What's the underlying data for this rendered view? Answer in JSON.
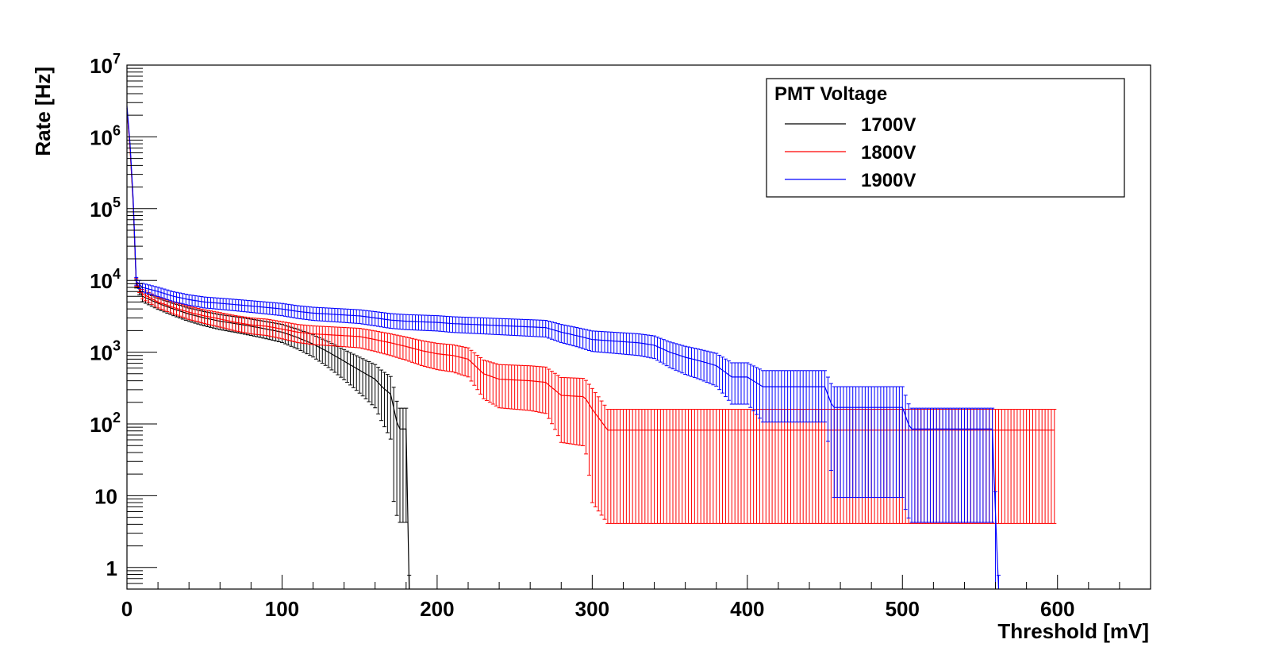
{
  "chart_data": {
    "type": "line",
    "xlabel": "Threshold [mV]",
    "ylabel": "Rate [Hz]",
    "xlim": [
      0,
      660
    ],
    "ylim": [
      0.5,
      10000000
    ],
    "y_scale": "log",
    "grid": false,
    "x_ticks": [
      0,
      100,
      200,
      300,
      400,
      500,
      600
    ],
    "x_tick_labels": [
      "0",
      "100",
      "200",
      "300",
      "400",
      "500",
      "600"
    ],
    "y_ticks": [
      1,
      10,
      100,
      1000,
      10000,
      100000,
      1000000,
      10000000
    ],
    "y_tick_labels": [
      {
        "base": "1",
        "exp": ""
      },
      {
        "base": "10",
        "exp": ""
      },
      {
        "base": "10",
        "exp": "2"
      },
      {
        "base": "10",
        "exp": "3"
      },
      {
        "base": "10",
        "exp": "4"
      },
      {
        "base": "10",
        "exp": "5"
      },
      {
        "base": "10",
        "exp": "6"
      },
      {
        "base": "10",
        "exp": "7"
      }
    ],
    "legend": {
      "title": "PMT Voltage",
      "position": "top-right"
    },
    "series": [
      {
        "name": "1700V",
        "color": "#000000",
        "points": [
          [
            0,
            2500000
          ],
          [
            2,
            700000
          ],
          [
            4,
            120000
          ],
          [
            6,
            9000
          ],
          [
            10,
            6000
          ],
          [
            20,
            4800
          ],
          [
            30,
            4000
          ],
          [
            40,
            3400
          ],
          [
            50,
            3000
          ],
          [
            60,
            2700
          ],
          [
            70,
            2500
          ],
          [
            80,
            2300
          ],
          [
            90,
            2100
          ],
          [
            100,
            1900
          ],
          [
            110,
            1600
          ],
          [
            120,
            1300
          ],
          [
            130,
            1000
          ],
          [
            140,
            750
          ],
          [
            150,
            560
          ],
          [
            160,
            420
          ],
          [
            165,
            320
          ],
          [
            170,
            260
          ],
          [
            175,
            85
          ],
          [
            180,
            85
          ],
          [
            182,
            0.4
          ]
        ]
      },
      {
        "name": "1800V",
        "color": "#ff0000",
        "points": [
          [
            0,
            2500000
          ],
          [
            2,
            700000
          ],
          [
            4,
            130000
          ],
          [
            6,
            9500
          ],
          [
            10,
            6500
          ],
          [
            20,
            5000
          ],
          [
            30,
            4200
          ],
          [
            40,
            3600
          ],
          [
            50,
            3200
          ],
          [
            60,
            2900
          ],
          [
            70,
            2600
          ],
          [
            80,
            2400
          ],
          [
            90,
            2300
          ],
          [
            100,
            2100
          ],
          [
            110,
            1900
          ],
          [
            120,
            1800
          ],
          [
            130,
            1750
          ],
          [
            140,
            1700
          ],
          [
            150,
            1650
          ],
          [
            160,
            1500
          ],
          [
            170,
            1350
          ],
          [
            180,
            1200
          ],
          [
            190,
            1050
          ],
          [
            200,
            950
          ],
          [
            210,
            900
          ],
          [
            220,
            800
          ],
          [
            230,
            500
          ],
          [
            240,
            420
          ],
          [
            260,
            400
          ],
          [
            270,
            380
          ],
          [
            280,
            250
          ],
          [
            295,
            240
          ],
          [
            300,
            160
          ],
          [
            310,
            82
          ],
          [
            598,
            82
          ]
        ]
      },
      {
        "name": "1900V",
        "color": "#0000ff",
        "points": [
          [
            0,
            2700000
          ],
          [
            2,
            800000
          ],
          [
            4,
            140000
          ],
          [
            6,
            9800
          ],
          [
            10,
            8000
          ],
          [
            20,
            7000
          ],
          [
            30,
            6000
          ],
          [
            40,
            5400
          ],
          [
            50,
            5000
          ],
          [
            60,
            4800
          ],
          [
            70,
            4600
          ],
          [
            80,
            4400
          ],
          [
            90,
            4200
          ],
          [
            100,
            4000
          ],
          [
            110,
            3700
          ],
          [
            120,
            3500
          ],
          [
            130,
            3400
          ],
          [
            140,
            3300
          ],
          [
            150,
            3200
          ],
          [
            160,
            3000
          ],
          [
            170,
            2800
          ],
          [
            180,
            2700
          ],
          [
            200,
            2600
          ],
          [
            210,
            2500
          ],
          [
            230,
            2400
          ],
          [
            250,
            2300
          ],
          [
            260,
            2250
          ],
          [
            270,
            2200
          ],
          [
            280,
            1900
          ],
          [
            290,
            1700
          ],
          [
            300,
            1500
          ],
          [
            310,
            1450
          ],
          [
            320,
            1400
          ],
          [
            330,
            1350
          ],
          [
            340,
            1250
          ],
          [
            350,
            1000
          ],
          [
            360,
            850
          ],
          [
            370,
            750
          ],
          [
            380,
            650
          ],
          [
            390,
            450
          ],
          [
            400,
            450
          ],
          [
            410,
            330
          ],
          [
            450,
            330
          ],
          [
            455,
            170
          ],
          [
            500,
            170
          ],
          [
            505,
            85
          ],
          [
            558,
            85
          ],
          [
            562,
            0.4
          ]
        ]
      }
    ]
  }
}
